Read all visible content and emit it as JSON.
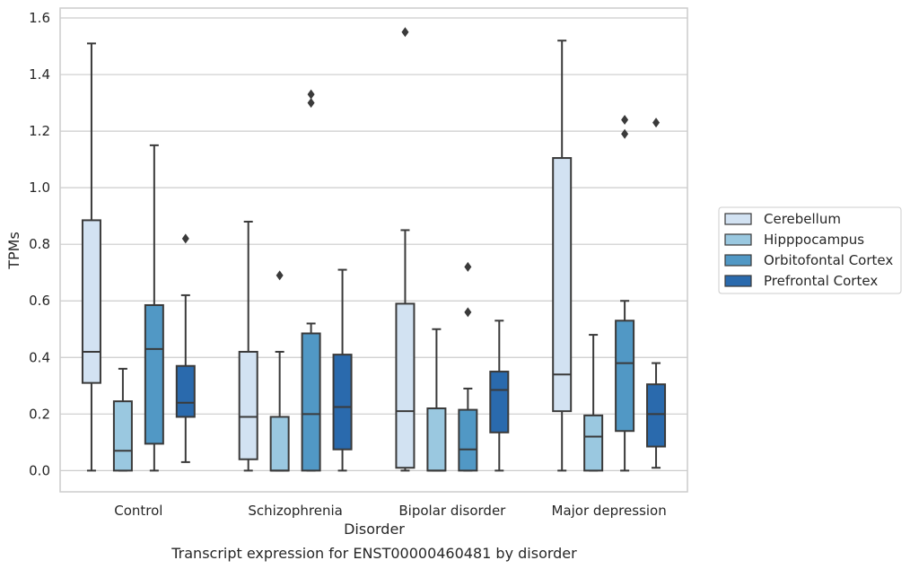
{
  "chart_data": {
    "type": "box",
    "xlabel": "Disorder",
    "ylabel": "TPMs",
    "caption": "Transcript expression for ENST00000460481 by disorder",
    "ylim": [
      -0.075,
      1.635
    ],
    "yticks": [
      "0.0",
      "0.2",
      "0.4",
      "0.6",
      "0.8",
      "1.0",
      "1.2",
      "1.4",
      "1.6"
    ],
    "grid": "horizontal",
    "legend_position": "right",
    "categories": [
      "Control",
      "Schizophrenia",
      "Bipolar disorder",
      "Major depression"
    ],
    "series": [
      {
        "name": "Cerebellum",
        "color": "#d2e2f2",
        "boxes": [
          {
            "whislo": 0.0,
            "q1": 0.31,
            "med": 0.42,
            "q3": 0.885,
            "whishi": 1.51,
            "fliers": []
          },
          {
            "whislo": 0.0,
            "q1": 0.04,
            "med": 0.19,
            "q3": 0.42,
            "whishi": 0.88,
            "fliers": []
          },
          {
            "whislo": 0.0,
            "q1": 0.01,
            "med": 0.21,
            "q3": 0.59,
            "whishi": 0.85,
            "fliers": [
              1.55
            ]
          },
          {
            "whislo": 0.0,
            "q1": 0.21,
            "med": 0.34,
            "q3": 1.105,
            "whishi": 1.52,
            "fliers": []
          }
        ]
      },
      {
        "name": "Hipppocampus",
        "color": "#9ac8e0",
        "boxes": [
          {
            "whislo": 0.0,
            "q1": 0.0,
            "med": 0.07,
            "q3": 0.245,
            "whishi": 0.36,
            "fliers": []
          },
          {
            "whislo": 0.0,
            "q1": 0.0,
            "med": 0.0,
            "q3": 0.19,
            "whishi": 0.42,
            "fliers": [
              0.69
            ]
          },
          {
            "whislo": 0.0,
            "q1": 0.0,
            "med": 0.0,
            "q3": 0.22,
            "whishi": 0.5,
            "fliers": []
          },
          {
            "whislo": 0.0,
            "q1": 0.0,
            "med": 0.12,
            "q3": 0.195,
            "whishi": 0.48,
            "fliers": []
          }
        ]
      },
      {
        "name": "Orbitofontal Cortex",
        "color": "#5198c5",
        "boxes": [
          {
            "whislo": 0.0,
            "q1": 0.095,
            "med": 0.43,
            "q3": 0.585,
            "whishi": 1.15,
            "fliers": []
          },
          {
            "whislo": 0.0,
            "q1": 0.0,
            "med": 0.2,
            "q3": 0.485,
            "whishi": 0.52,
            "fliers": [
              1.33,
              1.3
            ]
          },
          {
            "whislo": 0.0,
            "q1": 0.0,
            "med": 0.075,
            "q3": 0.215,
            "whishi": 0.29,
            "fliers": [
              0.72,
              0.56
            ]
          },
          {
            "whislo": 0.0,
            "q1": 0.14,
            "med": 0.38,
            "q3": 0.53,
            "whishi": 0.6,
            "fliers": [
              1.24,
              1.19
            ]
          }
        ]
      },
      {
        "name": "Prefrontal Cortex",
        "color": "#2a6aad",
        "boxes": [
          {
            "whislo": 0.03,
            "q1": 0.19,
            "med": 0.24,
            "q3": 0.37,
            "whishi": 0.62,
            "fliers": [
              0.82
            ]
          },
          {
            "whislo": 0.0,
            "q1": 0.075,
            "med": 0.225,
            "q3": 0.41,
            "whishi": 0.71,
            "fliers": []
          },
          {
            "whislo": 0.0,
            "q1": 0.135,
            "med": 0.285,
            "q3": 0.35,
            "whishi": 0.53,
            "fliers": []
          },
          {
            "whislo": 0.01,
            "q1": 0.085,
            "med": 0.2,
            "q3": 0.305,
            "whishi": 0.38,
            "fliers": [
              1.23
            ]
          }
        ]
      }
    ]
  }
}
